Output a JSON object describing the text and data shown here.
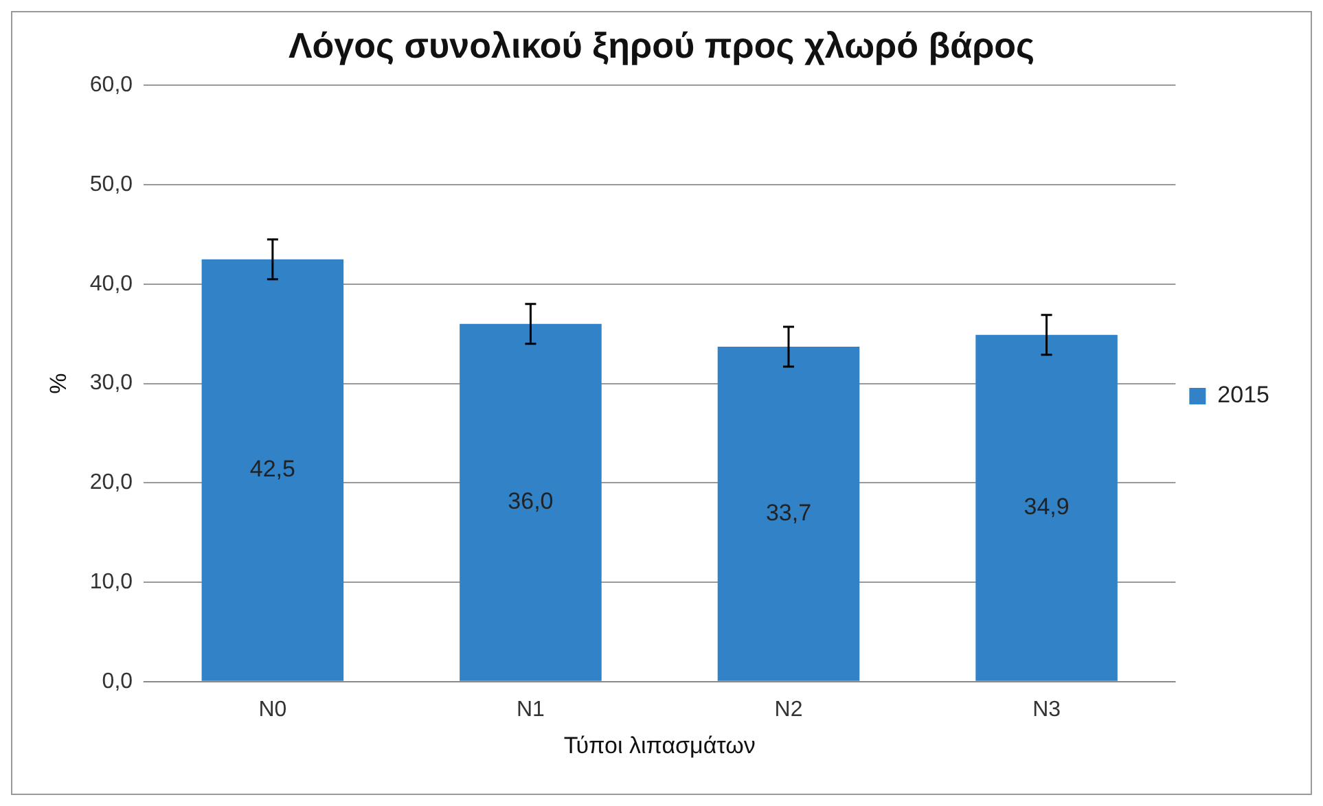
{
  "chart_data": {
    "type": "bar",
    "title": "Λόγος συνολικού ξηρού προς χλωρό βάρος",
    "xlabel": "Τύποι λιπασμάτων",
    "ylabel": "%",
    "categories": [
      "N0",
      "N1",
      "N2",
      "N3"
    ],
    "series": [
      {
        "name": "2015",
        "color": "#3282c8",
        "values": [
          42.5,
          36.0,
          33.7,
          34.9
        ],
        "errors": [
          2,
          2,
          2,
          2
        ],
        "value_labels": [
          "42,5",
          "36,0",
          "33,7",
          "34,9"
        ]
      }
    ],
    "ylim": [
      0,
      60
    ],
    "yticks": [
      {
        "value": 0,
        "label": "0,0"
      },
      {
        "value": 10,
        "label": "10,0"
      },
      {
        "value": 20,
        "label": "20,0"
      },
      {
        "value": 30,
        "label": "30,0"
      },
      {
        "value": 40,
        "label": "40,0"
      },
      {
        "value": 50,
        "label": "50,0"
      },
      {
        "value": 60,
        "label": "60,0"
      }
    ],
    "grid": "y",
    "legend": "right"
  }
}
